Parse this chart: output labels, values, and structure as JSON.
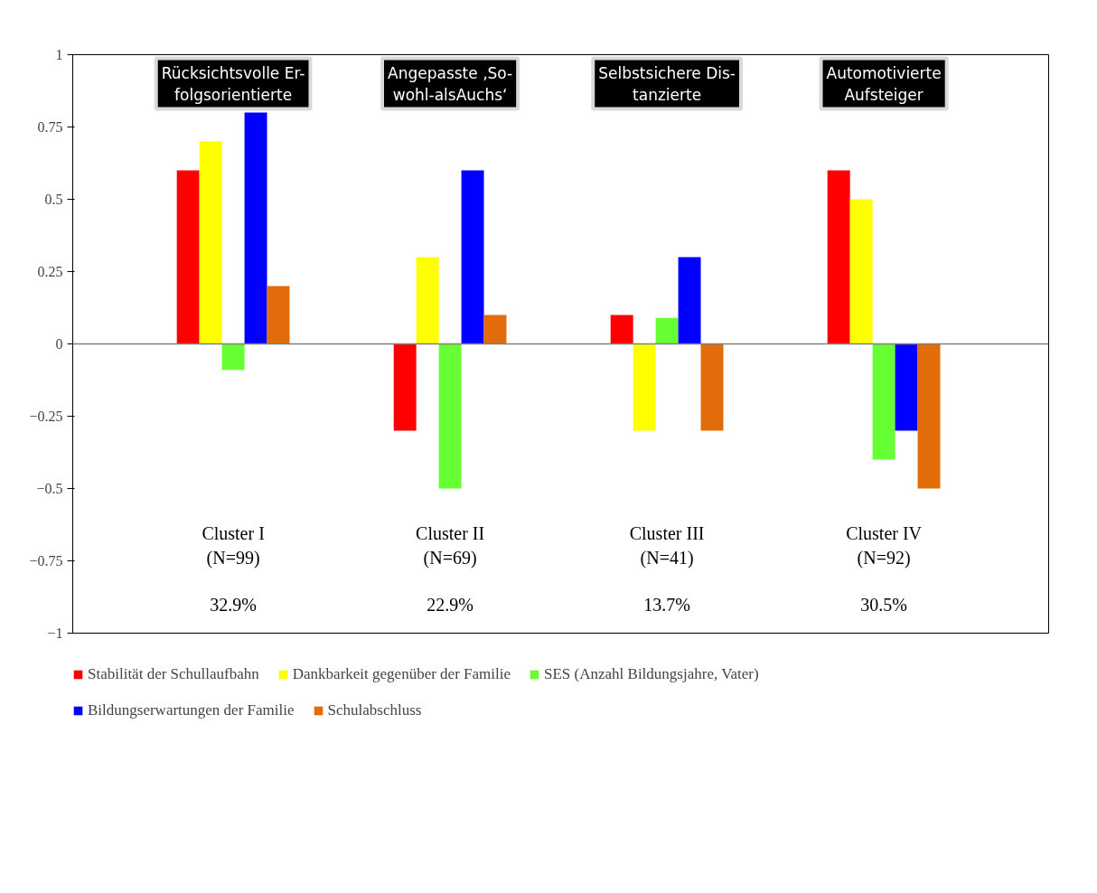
{
  "chart_data": {
    "type": "bar",
    "categories": [
      null,
      null,
      null,
      null
    ],
    "series": [
      {
        "name": "Stabilität der Schullaufbahn",
        "color": "#ff0000",
        "values": [
          0.6,
          -0.3,
          0.1,
          0.6
        ]
      },
      {
        "name": "Dankbarkeit gegenüber der Familie",
        "color": "#ffff00",
        "values": [
          0.7,
          0.3,
          -0.3,
          0.5
        ]
      },
      {
        "name": "SES (Anzahl Bildungsjahre, Vater)",
        "color": "#66ff33",
        "values": [
          -0.09,
          -0.5,
          0.09,
          -0.4
        ]
      },
      {
        "name": "Bildungserwartungen der Familie",
        "color": "#0000ff",
        "values": [
          0.8,
          0.6,
          0.3,
          -0.3
        ]
      },
      {
        "name": "Schulabschluss",
        "color": "#e36c0a",
        "values": [
          0.2,
          0.1,
          -0.3,
          -0.5
        ]
      }
    ],
    "ylim": [
      -1,
      1
    ],
    "yticks": [
      -1,
      -0.75,
      -0.5,
      -0.25,
      0,
      0.25,
      0.5,
      0.75,
      1
    ],
    "ref_lines": [
      {
        "axis": "y",
        "value": 0
      }
    ],
    "annotations": [
      "Rücksichtsvolle Er-\nfolgsorientierte",
      "Angepasste ‚So-\nwohl-alsAuchs‘",
      "Selbstsichere Dis-\ntanzierte",
      "Automotivierte\nAufsteiger",
      "Cluster I\n(N=99)\n\n32.9%",
      "Cluster II\n(N=69)\n\n22.9%",
      "Cluster III\n(N=41)\n\n13.7%",
      "Cluster IV\n(N=92)\n\n30.5%"
    ],
    "tick_labels": "y",
    "grid": false,
    "legend": "bottom"
  }
}
